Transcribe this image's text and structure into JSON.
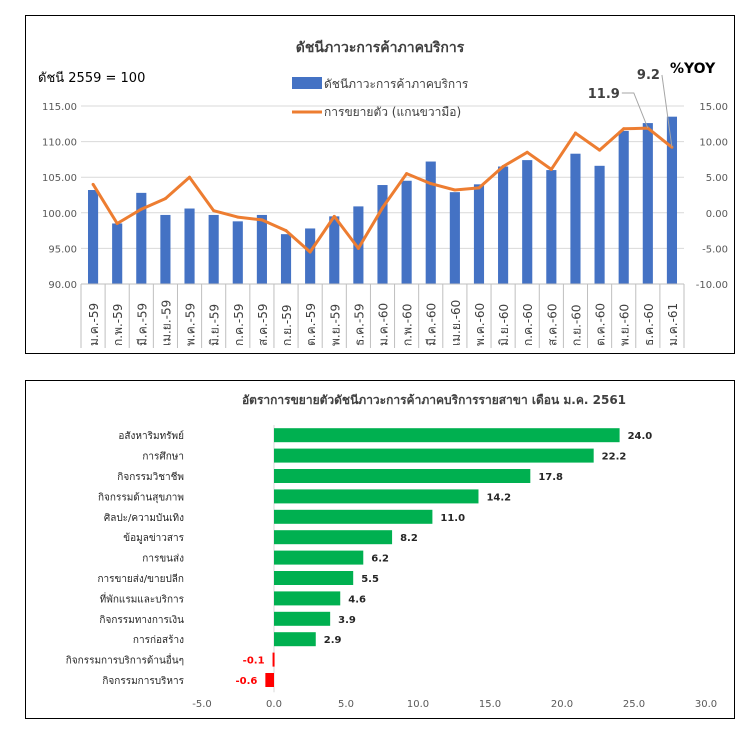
{
  "chart_data": [
    {
      "type": "bar+line",
      "title": "ดัชนีภาวะการค้าภาคบริการ",
      "base_note": "ดัชนี 2559 = 100",
      "categories": [
        "ม.ค.-59",
        "ก.พ.-59",
        "มี.ค.-59",
        "เม.ย.-59",
        "พ.ค.-59",
        "มิ.ย.-59",
        "ก.ค.-59",
        "ส.ค.-59",
        "ก.ย.-59",
        "ต.ค.-59",
        "พ.ย.-59",
        "ธ.ค.-59",
        "ม.ค.-60",
        "ก.พ.-60",
        "มี.ค.-60",
        "เม.ย.-60",
        "พ.ค.-60",
        "มิ.ย.-60",
        "ก.ค.-60",
        "ส.ค.-60",
        "ก.ย.-60",
        "ต.ค.-60",
        "พ.ย.-60",
        "ธ.ค.-60",
        "ม.ค.-61"
      ],
      "series": [
        {
          "name": "ดัชนีภาวะการค้าภาคบริการ",
          "kind": "bar",
          "axis": "left",
          "color": "#4472C4",
          "values": [
            103.2,
            98.5,
            102.8,
            99.7,
            100.6,
            99.7,
            98.8,
            99.7,
            97.0,
            97.8,
            99.5,
            100.9,
            103.9,
            104.5,
            107.2,
            102.9,
            104.0,
            106.5,
            107.4,
            106.0,
            108.3,
            106.6,
            111.5,
            112.6,
            113.5
          ]
        },
        {
          "name": "การขยายตัว (แกนขวามือ)",
          "kind": "line",
          "axis": "right",
          "color": "#ED7D31",
          "values": [
            4.0,
            -1.5,
            0.5,
            2.0,
            5.0,
            0.3,
            -0.6,
            -1.0,
            -2.5,
            -5.5,
            -0.5,
            -5.0,
            0.7,
            5.5,
            4.1,
            3.2,
            3.5,
            6.5,
            8.5,
            6.1,
            11.2,
            8.8,
            11.8,
            11.9,
            9.2
          ]
        }
      ],
      "callouts": [
        {
          "label": "11.9",
          "series": "การขยายตัว (แกนขวามือ)",
          "index": 23
        },
        {
          "label": "9.2",
          "series": "การขยายตัว (แกนขวามือ)",
          "index": 24
        }
      ],
      "yoy_label": "%YOY",
      "ylim_left": [
        90,
        115
      ],
      "yticks_left": [
        "90.00",
        "95.00",
        "100.00",
        "105.00",
        "110.00",
        "115.00"
      ],
      "ylim_right": [
        -10,
        15
      ],
      "yticks_right": [
        "-10.00",
        "-5.00",
        "0.00",
        "5.00",
        "10.00",
        "15.00"
      ],
      "legend_position": "top-center"
    },
    {
      "type": "bar",
      "orientation": "horizontal",
      "title": "อัตราการขยายตัวดัชนีภาวะการค้าภาคบริการรายสาขา  เดือน ม.ค. 2561",
      "categories": [
        "อสังหาริมทรัพย์",
        "การศึกษา",
        "กิจกรรมวิชาชีพ",
        "กิจกรรมด้านสุขภาพ",
        "ศิลปะ/ความบันเทิง",
        "ข้อมูลข่าวสาร",
        "การขนส่ง",
        "การขายส่ง/ขายปลีก",
        "ที่พักแรมและบริการ",
        "กิจกรรมทางการเงิน",
        "การก่อสร้าง",
        "กิจกรรมการบริการด้านอื่นๆ",
        "กิจกรรมการบริหาร"
      ],
      "values": [
        24.0,
        22.2,
        17.8,
        14.2,
        11.0,
        8.2,
        6.2,
        5.5,
        4.6,
        3.9,
        2.9,
        -0.1,
        -0.6
      ],
      "value_labels": [
        "24.0",
        "22.2",
        "17.8",
        "14.2",
        "11.0",
        "8.2",
        "6.2",
        "5.5",
        "4.6",
        "3.9",
        "2.9",
        "-0.1",
        "-0.6"
      ],
      "xlim": [
        -5,
        30
      ],
      "xticks": [
        "-5.0",
        "0.0",
        "5.0",
        "10.0",
        "15.0",
        "20.0",
        "25.0",
        "30.0"
      ],
      "positive_color": "#00B050",
      "negative_color": "#FF0000",
      "negative_label_color": "#FF0000"
    }
  ]
}
